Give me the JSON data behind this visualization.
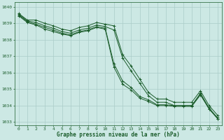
{
  "title": "Graphe pression niveau de la mer (hPa)",
  "background_color": "#cce8e4",
  "grid_color": "#aaccc8",
  "line_color": "#1a5c2a",
  "xlim": [
    -0.5,
    23.5
  ],
  "ylim": [
    1032.8,
    1040.3
  ],
  "yticks": [
    1033,
    1034,
    1035,
    1036,
    1037,
    1038,
    1039,
    1040
  ],
  "xticks": [
    0,
    1,
    2,
    3,
    4,
    5,
    6,
    7,
    8,
    9,
    10,
    11,
    12,
    13,
    14,
    15,
    16,
    17,
    18,
    19,
    20,
    21,
    22,
    23
  ],
  "series": [
    [
      1039.6,
      1039.2,
      1039.2,
      1039.0,
      1038.85,
      1038.65,
      1038.55,
      1038.75,
      1038.85,
      1039.05,
      1038.95,
      1038.85,
      1037.1,
      1036.4,
      1035.6,
      1034.8,
      1034.4,
      1034.4,
      1034.2,
      1034.2,
      1034.2,
      1034.9,
      1034.0,
      1033.4
    ],
    [
      1039.55,
      1039.15,
      1039.05,
      1038.85,
      1038.7,
      1038.5,
      1038.4,
      1038.6,
      1038.7,
      1038.9,
      1038.8,
      1038.6,
      1036.9,
      1036.1,
      1035.35,
      1034.6,
      1034.2,
      1034.2,
      1034.0,
      1034.0,
      1034.0,
      1034.7,
      1033.8,
      1033.2
    ],
    [
      1039.5,
      1039.1,
      1038.95,
      1038.75,
      1038.6,
      1038.4,
      1038.3,
      1038.5,
      1038.6,
      1038.8,
      1038.7,
      1036.55,
      1035.5,
      1035.1,
      1034.55,
      1034.35,
      1034.05,
      1034.05,
      1034.0,
      1034.0,
      1034.0,
      1034.75,
      1033.85,
      1033.25
    ],
    [
      1039.45,
      1039.05,
      1038.9,
      1038.65,
      1038.5,
      1038.35,
      1038.25,
      1038.45,
      1038.55,
      1038.75,
      1038.65,
      1036.35,
      1035.3,
      1034.95,
      1034.45,
      1034.25,
      1034.0,
      1034.0,
      1033.95,
      1033.95,
      1033.95,
      1034.65,
      1033.8,
      1033.2
    ]
  ]
}
